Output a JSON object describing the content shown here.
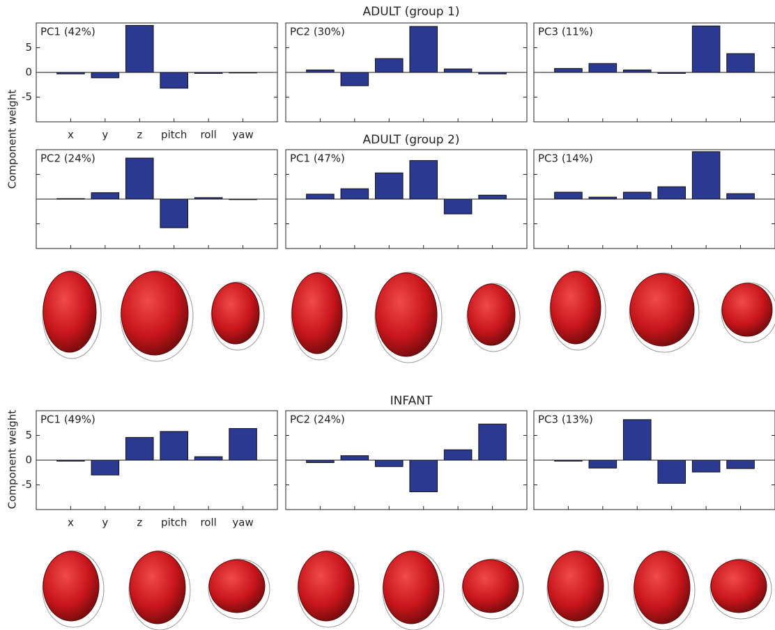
{
  "figure": {
    "group_titles": [
      "ADULT (group 1)",
      "ADULT (group 2)",
      "INFANT"
    ],
    "y_label": "Component weight"
  },
  "chart_data": [
    {
      "type": "bar",
      "title": "PC1 (42%)",
      "categories": [
        "x",
        "y",
        "z",
        "pitch",
        "roll",
        "yaw"
      ],
      "values": [
        -0.3,
        -1.1,
        9.5,
        -3.2,
        -0.2,
        -0.1
      ],
      "color": "#2b3990",
      "ylim": [
        -10,
        10
      ],
      "yticks": [
        -5,
        0,
        5
      ]
    },
    {
      "type": "bar",
      "title": "PC2 (30%)",
      "categories": [
        null,
        null,
        null,
        null,
        null,
        null
      ],
      "values": [
        0.5,
        -2.7,
        2.8,
        9.3,
        0.7,
        -0.3
      ],
      "color": "#2b3990",
      "ylim": [
        -10,
        10
      ]
    },
    {
      "type": "bar",
      "title": "PC3 (11%)",
      "categories": [
        null,
        null,
        null,
        null,
        null,
        null
      ],
      "values": [
        0.8,
        1.8,
        0.5,
        -0.2,
        9.4,
        3.8
      ],
      "color": "#2b3990",
      "ylim": [
        -10,
        10
      ]
    },
    {
      "type": "bar",
      "title": "PC2 (24%)",
      "categories": [
        null,
        null,
        null,
        null,
        null,
        null
      ],
      "values": [
        0.1,
        1.3,
        8.3,
        -5.8,
        0.3,
        -0.1
      ],
      "color": "#2b3990",
      "ylim": [
        -10,
        10
      ]
    },
    {
      "type": "bar",
      "title": "PC1 (47%)",
      "categories": [
        null,
        null,
        null,
        null,
        null,
        null
      ],
      "values": [
        1.0,
        2.1,
        5.3,
        7.8,
        -3.0,
        0.8
      ],
      "color": "#2b3990",
      "ylim": [
        -10,
        10
      ]
    },
    {
      "type": "bar",
      "title": "PC3 (14%)",
      "categories": [
        null,
        null,
        null,
        null,
        null,
        null
      ],
      "values": [
        1.4,
        0.4,
        1.4,
        2.5,
        9.6,
        1.1
      ],
      "color": "#2b3990",
      "ylim": [
        -10,
        10
      ]
    },
    {
      "type": "bar",
      "title": "PC1 (49%)",
      "categories": [
        "x",
        "y",
        "z",
        "pitch",
        "roll",
        "yaw"
      ],
      "values": [
        -0.2,
        -3.0,
        4.6,
        5.8,
        0.7,
        6.4
      ],
      "color": "#2b3990",
      "ylim": [
        -10,
        10
      ],
      "yticks": [
        -5,
        0,
        5
      ]
    },
    {
      "type": "bar",
      "title": "PC2 (24%)",
      "categories": [
        null,
        null,
        null,
        null,
        null,
        null
      ],
      "values": [
        -0.5,
        0.9,
        -1.3,
        -6.4,
        2.1,
        7.3
      ],
      "color": "#2b3990",
      "ylim": [
        -10,
        10
      ]
    },
    {
      "type": "bar",
      "title": "PC3 (13%)",
      "categories": [
        null,
        null,
        null,
        null,
        null,
        null
      ],
      "values": [
        -0.2,
        -1.6,
        8.2,
        -4.7,
        -2.4,
        -1.7
      ],
      "color": "#2b3990",
      "ylim": [
        -10,
        10
      ]
    }
  ]
}
